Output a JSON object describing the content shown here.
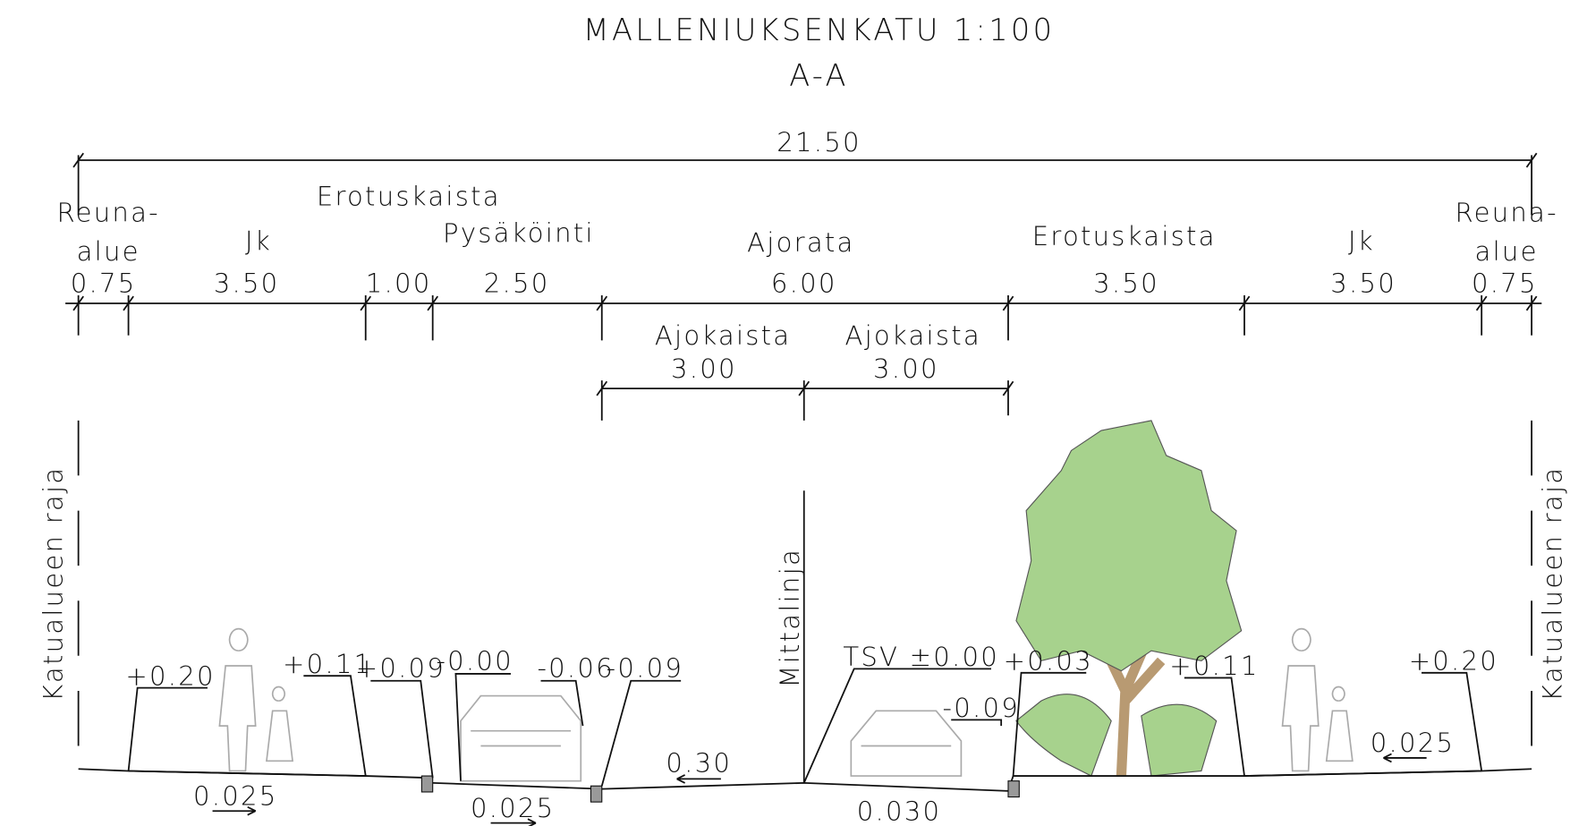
{
  "title": "MALLENIUKSENKATU 1:100",
  "subtitle": "A-A",
  "total_width": "21.50",
  "zones": [
    {
      "name": [
        "Reuna-",
        "alue"
      ],
      "width": "0.75"
    },
    {
      "name": [
        "Jk"
      ],
      "width": "3.50"
    },
    {
      "name": [
        "Erotuskaista"
      ],
      "width": "1.00"
    },
    {
      "name": [
        "Pysäköinti"
      ],
      "width": "2.50"
    },
    {
      "name": [
        "Ajorata"
      ],
      "width": "6.00"
    },
    {
      "name": [
        "Erotuskaista"
      ],
      "width": "3.50"
    },
    {
      "name": [
        "Jk"
      ],
      "width": "3.50"
    },
    {
      "name": [
        "Reuna-",
        "alue"
      ],
      "width": "0.75"
    }
  ],
  "lanes": [
    {
      "name": "Ajokaista",
      "width": "3.00"
    },
    {
      "name": "Ajokaista",
      "width": "3.00"
    }
  ],
  "boundary_label": "Katualueen raja",
  "centerline_label": "Mittalinja",
  "elevations": [
    "+0.20",
    "+0.11",
    "+0.09",
    "-0.00",
    "-0.06",
    "-0.09",
    "TSV ±0.00",
    "-0.09",
    "+0.03",
    "+0.11",
    "+0.20"
  ],
  "slopes": [
    "0.025",
    "0.025",
    "0.30",
    "0.030",
    "0.025"
  ]
}
